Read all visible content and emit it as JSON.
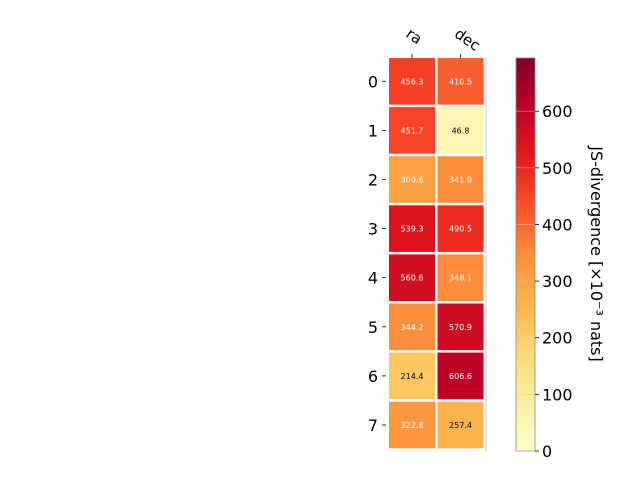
{
  "chart_data": {
    "type": "heatmap",
    "columns": [
      "ra",
      "dec"
    ],
    "rows": [
      "0",
      "1",
      "2",
      "3",
      "4",
      "5",
      "6",
      "7"
    ],
    "values": [
      [
        456.3,
        410.5
      ],
      [
        451.7,
        46.8
      ],
      [
        300.6,
        341.0
      ],
      [
        539.3,
        490.5
      ],
      [
        560.6,
        348.1
      ],
      [
        344.2,
        570.9
      ],
      [
        214.4,
        606.6
      ],
      [
        322.8,
        257.4
      ]
    ],
    "labels": [
      [
        "456.3",
        "410.5"
      ],
      [
        "451.7",
        "46.8"
      ],
      [
        "300.6",
        "341.0"
      ],
      [
        "539.3",
        "490.5"
      ],
      [
        "560.6",
        "348.1"
      ],
      [
        "344.2",
        "570.9"
      ],
      [
        "214.4",
        "606.6"
      ],
      [
        "322.8",
        "257.4"
      ]
    ],
    "colorbar": {
      "label": "JS-divergence [×10⁻³ nats]",
      "range": [
        0,
        694
      ],
      "ticks": [
        0,
        100,
        200,
        300,
        400,
        500,
        600
      ],
      "tick_labels": [
        "0",
        "100",
        "200",
        "300",
        "400",
        "500",
        "600"
      ],
      "colormap": "YlOrRd"
    },
    "colormap_stops": [
      "#ffffcc",
      "#ffeda0",
      "#fed976",
      "#feb24c",
      "#fd8d3c",
      "#fc4e2a",
      "#e31a1c",
      "#bd0026",
      "#800026"
    ]
  }
}
